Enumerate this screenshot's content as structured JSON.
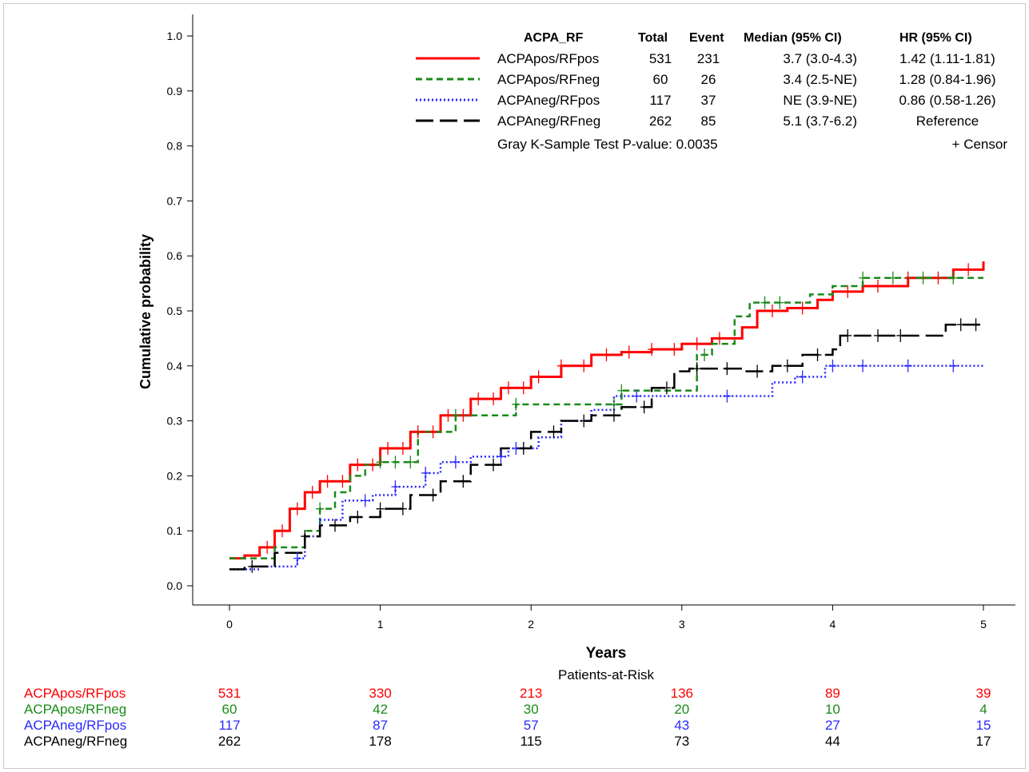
{
  "chart_data": {
    "type": "line",
    "xlabel": "Years",
    "ylabel": "Cumulative probability",
    "xlim": [
      0,
      5
    ],
    "ylim": [
      0,
      1
    ],
    "x_ticks": [
      "0",
      "1",
      "2",
      "3",
      "4",
      "5"
    ],
    "y_ticks": [
      "0.0",
      "0.1",
      "0.2",
      "0.3",
      "0.4",
      "0.5",
      "0.6",
      "0.7",
      "0.8",
      "0.9",
      "1.0"
    ],
    "grid": false,
    "legend_position": "top-right",
    "legend_headers": {
      "group": "ACPA_RF",
      "total": "Total",
      "event": "Event",
      "median": "Median (95% CI)",
      "hr": "HR (95% CI)"
    },
    "test_text": "Gray K-Sample Test P-value: 0.0035",
    "censor_text": "+ Censor",
    "risk_title": "Patients-at-Risk",
    "series": [
      {
        "name": "ACPApos/RFpos",
        "color": "#ff0000",
        "dash": "solid",
        "total": "531",
        "event": "231",
        "median": "3.7 (3.0-4.3)",
        "hr": "1.42 (1.11-1.81)",
        "at_risk": [
          "531",
          "330",
          "213",
          "136",
          "89",
          "39"
        ],
        "x": [
          0,
          0.1,
          0.2,
          0.3,
          0.4,
          0.5,
          0.6,
          0.8,
          1.0,
          1.2,
          1.4,
          1.6,
          1.8,
          2.0,
          2.2,
          2.4,
          2.6,
          2.8,
          3.0,
          3.2,
          3.4,
          3.5,
          3.7,
          3.9,
          4.0,
          4.2,
          4.5,
          4.8,
          5.0
        ],
        "y": [
          0.05,
          0.055,
          0.07,
          0.1,
          0.14,
          0.17,
          0.19,
          0.22,
          0.25,
          0.28,
          0.31,
          0.34,
          0.36,
          0.38,
          0.4,
          0.42,
          0.425,
          0.43,
          0.44,
          0.45,
          0.47,
          0.5,
          0.505,
          0.52,
          0.535,
          0.545,
          0.56,
          0.575,
          0.59
        ],
        "censor_x": [
          0.25,
          0.35,
          0.45,
          0.55,
          0.65,
          0.75,
          0.85,
          0.95,
          1.05,
          1.15,
          1.25,
          1.35,
          1.45,
          1.55,
          1.65,
          1.75,
          1.85,
          1.95,
          2.05,
          2.2,
          2.35,
          2.5,
          2.65,
          2.8,
          2.95,
          3.1,
          3.25,
          3.6,
          3.8,
          4.1,
          4.3,
          4.5,
          4.7,
          4.9
        ]
      },
      {
        "name": "ACPApos/RFneg",
        "color": "#1a8a1a",
        "dash": "8,5",
        "total": "60",
        "event": "26",
        "median": "3.4 (2.5-NE)",
        "hr": "1.28 (0.84-1.96)",
        "at_risk": [
          "60",
          "42",
          "30",
          "20",
          "10",
          "4"
        ],
        "x": [
          0,
          0.3,
          0.5,
          0.6,
          0.7,
          0.8,
          0.9,
          1.0,
          1.25,
          1.5,
          1.9,
          2.5,
          2.6,
          3.1,
          3.2,
          3.35,
          3.45,
          3.85,
          4.0,
          4.2,
          4.6,
          5.0
        ],
        "y": [
          0.05,
          0.07,
          0.1,
          0.14,
          0.17,
          0.2,
          0.22,
          0.225,
          0.28,
          0.31,
          0.33,
          0.33,
          0.355,
          0.42,
          0.44,
          0.49,
          0.515,
          0.53,
          0.545,
          0.56,
          0.56,
          0.56
        ],
        "censor_x": [
          0.6,
          1.0,
          1.1,
          1.2,
          1.5,
          1.9,
          2.55,
          2.6,
          3.15,
          3.55,
          3.65,
          4.2,
          4.4,
          4.6,
          4.8
        ]
      },
      {
        "name": "ACPAneg/RFpos",
        "color": "#2a2aff",
        "dash": "2,3",
        "total": "117",
        "event": "37",
        "median": "NE (3.9-NE)",
        "hr": "0.86 (0.58-1.26)",
        "at_risk": [
          "117",
          "87",
          "57",
          "43",
          "27",
          "15"
        ],
        "x": [
          0,
          0.2,
          0.45,
          0.5,
          0.6,
          0.75,
          0.95,
          1.1,
          1.3,
          1.4,
          1.6,
          1.85,
          2.05,
          2.2,
          2.4,
          2.55,
          3.2,
          3.6,
          3.75,
          3.85,
          3.95,
          5.0
        ],
        "y": [
          0.03,
          0.035,
          0.05,
          0.09,
          0.12,
          0.155,
          0.165,
          0.18,
          0.205,
          0.225,
          0.235,
          0.25,
          0.27,
          0.3,
          0.32,
          0.345,
          0.345,
          0.37,
          0.38,
          0.38,
          0.4,
          0.4
        ],
        "censor_x": [
          0.45,
          0.9,
          1.1,
          1.3,
          1.5,
          1.8,
          1.9,
          2.7,
          3.3,
          3.8,
          4.0,
          4.2,
          4.5,
          4.8
        ]
      },
      {
        "name": "ACPAneg/RFneg",
        "color": "#000000",
        "dash": "22,8",
        "total": "262",
        "event": "85",
        "median": "5.1 (3.7-6.2)",
        "hr": "Reference",
        "at_risk": [
          "262",
          "178",
          "115",
          "73",
          "44",
          "17"
        ],
        "x": [
          0,
          0.1,
          0.3,
          0.5,
          0.6,
          0.8,
          1.0,
          1.2,
          1.4,
          1.6,
          1.8,
          2.0,
          2.2,
          2.4,
          2.6,
          2.8,
          2.95,
          3.05,
          3.4,
          3.6,
          3.8,
          4.0,
          4.05,
          4.6,
          4.75,
          5.0
        ],
        "y": [
          0.03,
          0.035,
          0.06,
          0.09,
          0.11,
          0.125,
          0.14,
          0.165,
          0.19,
          0.22,
          0.25,
          0.28,
          0.3,
          0.31,
          0.325,
          0.36,
          0.39,
          0.395,
          0.39,
          0.4,
          0.42,
          0.43,
          0.455,
          0.455,
          0.475,
          0.475
        ],
        "censor_x": [
          0.15,
          0.5,
          0.7,
          0.85,
          1.0,
          1.15,
          1.35,
          1.55,
          1.75,
          1.95,
          2.15,
          2.35,
          2.55,
          2.75,
          2.9,
          3.1,
          3.3,
          3.5,
          3.7,
          3.9,
          4.1,
          4.3,
          4.45,
          4.85,
          4.95
        ]
      }
    ]
  }
}
